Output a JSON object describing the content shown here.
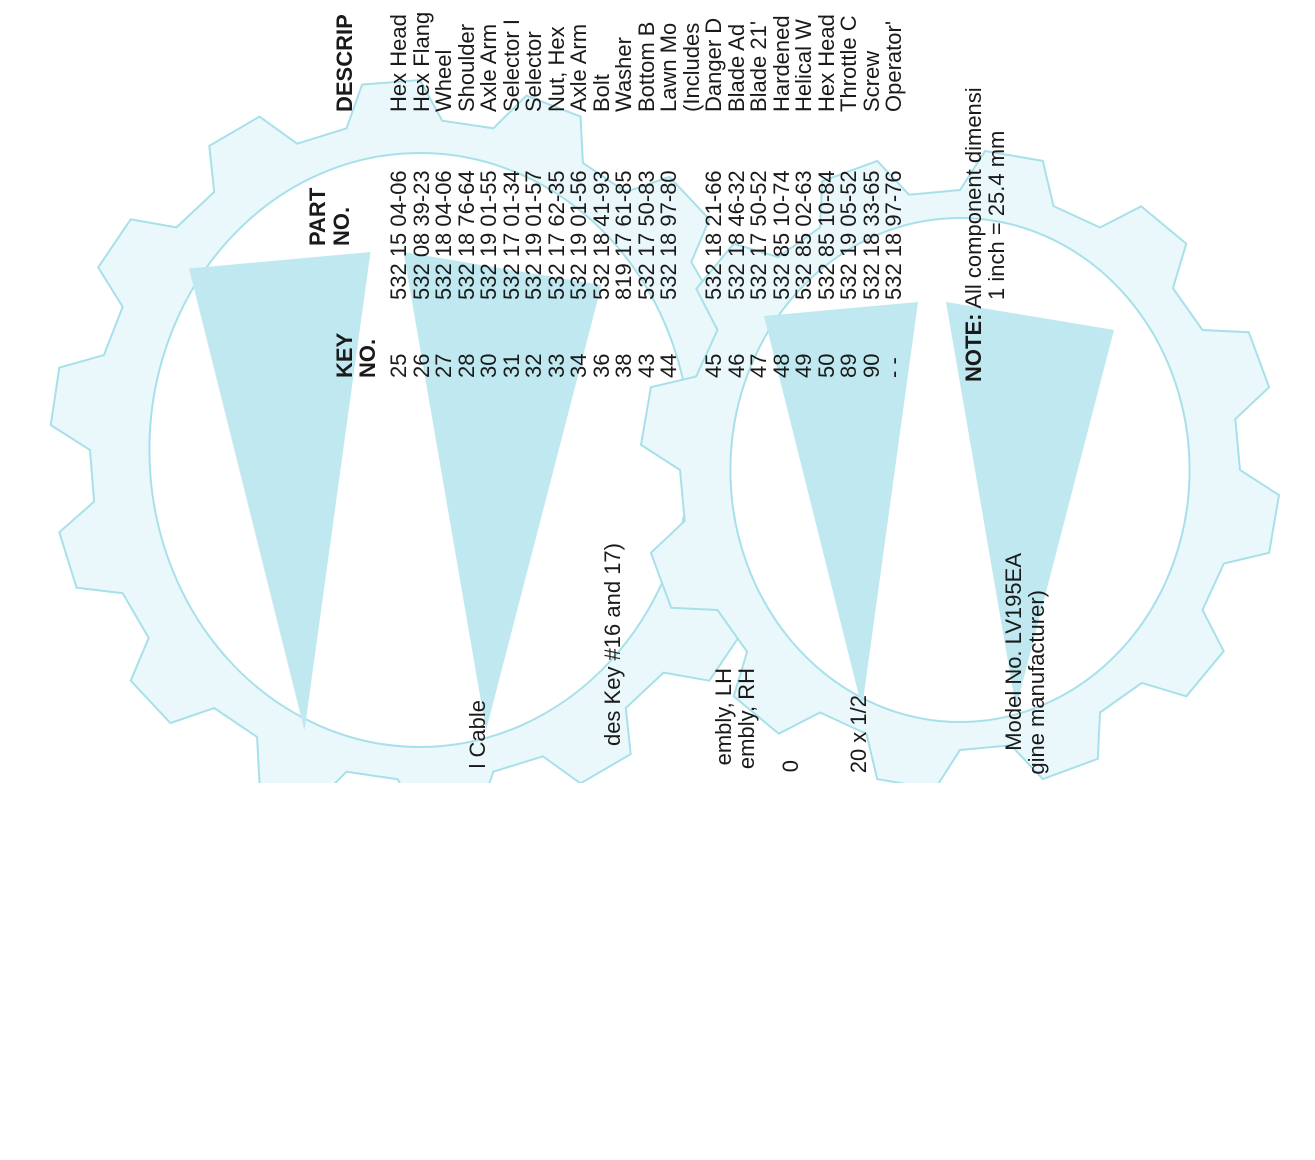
{
  "header": {
    "key_no": [
      "KEY",
      "NO."
    ],
    "part_no": [
      "PART",
      "NO."
    ],
    "description": "DESCRIP"
  },
  "rows": [
    {
      "key": "25",
      "part": "532 15 04-06",
      "description": [
        "Hex Head"
      ]
    },
    {
      "key": "26",
      "part": "532 08 39-23",
      "description": [
        "Hex Flang"
      ]
    },
    {
      "key": "27",
      "part": "532 18 04-06",
      "description": [
        "Wheel"
      ]
    },
    {
      "key": "28",
      "part": "532 18 76-64",
      "description": [
        "Shoulder"
      ]
    },
    {
      "key": "30",
      "part": "532 19 01-55",
      "description": [
        "Axle Arm"
      ]
    },
    {
      "key": "31",
      "part": "532 17 01-34",
      "description": [
        "Selector I"
      ]
    },
    {
      "key": "32",
      "part": "532 19 01-57",
      "description": [
        "Selector"
      ]
    },
    {
      "key": "33",
      "part": "532 17 62-35",
      "description": [
        "Nut, Hex"
      ]
    },
    {
      "key": "34",
      "part": "532 19 01-56",
      "description": [
        "Axle Arm"
      ]
    },
    {
      "key": "36",
      "part": "532 18 41-93",
      "description": [
        "Bolt"
      ]
    },
    {
      "key": "38",
      "part": "819 17 61-85",
      "description": [
        "Washer"
      ]
    },
    {
      "key": "43",
      "part": "532 17 50-83",
      "description": [
        "Bottom B"
      ]
    },
    {
      "key": "44",
      "part": "532 18 97-80",
      "description": [
        "Lawn Mo",
        "(Includes"
      ]
    },
    {
      "key": "45",
      "part": "532 18 21-66",
      "description": [
        "Danger D"
      ]
    },
    {
      "key": "46",
      "part": "532 18 46-32",
      "description": [
        "Blade Ad"
      ]
    },
    {
      "key": "47",
      "part": "532 17 50-52",
      "description": [
        "Blade 21'"
      ]
    },
    {
      "key": "48",
      "part": "532 85 10-74",
      "description": [
        "Hardened"
      ]
    },
    {
      "key": "49",
      "part": "532 85 02-63",
      "description": [
        "Helical W"
      ]
    },
    {
      "key": "50",
      "part": "532 85 10-84",
      "description": [
        "Hex Head"
      ]
    },
    {
      "key": "89",
      "part": "532 19 05-52",
      "description": [
        "Throttle C"
      ]
    },
    {
      "key": "90",
      "part": "532 18 33-65",
      "description": [
        "Screw"
      ]
    },
    {
      "key": "- -",
      "part": "532 18 97-76",
      "description": [
        "Operator'"
      ]
    }
  ],
  "left_fragments": [
    "l Cable",
    "des Key #16 and 17)",
    "embly, LH",
    "embly, RH",
    "0",
    "20 x 1/2",
    "Model No. LV195EA",
    "gine manufacturer)"
  ],
  "note": {
    "label": "NOTE:",
    "text": " All component dimensi",
    "conversion": "1 inch = 25.4 mm"
  }
}
